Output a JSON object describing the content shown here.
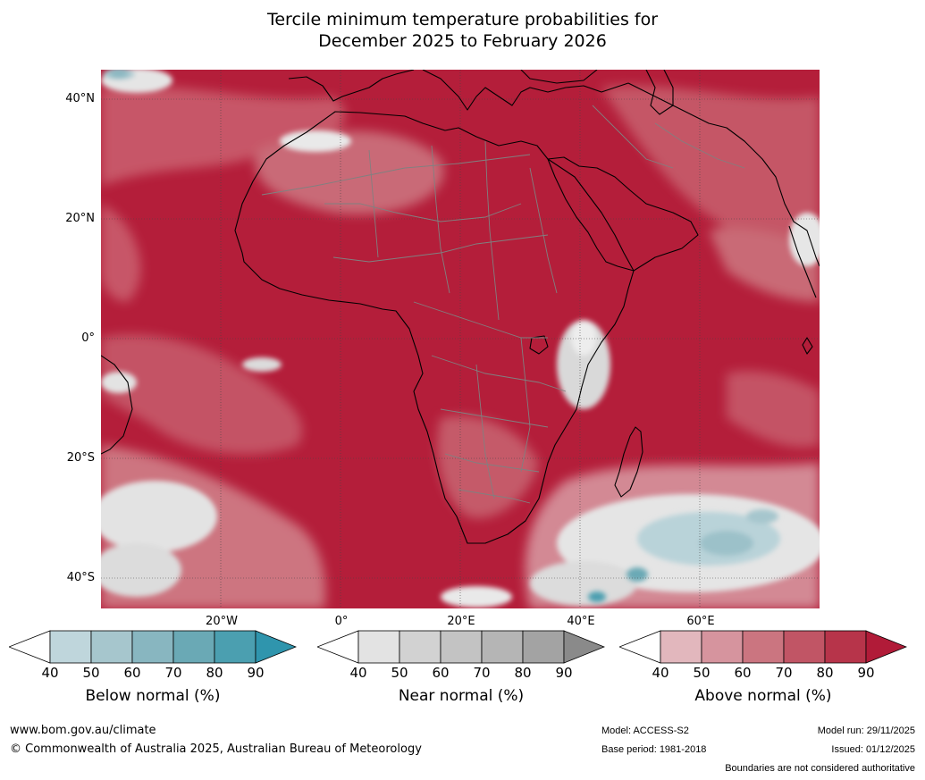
{
  "title": {
    "line1": "Tercile minimum temperature probabilities for",
    "line2": "December 2025 to February 2026"
  },
  "map": {
    "lat_labels": [
      "40°N",
      "20°N",
      "0°",
      "20°S",
      "40°S"
    ],
    "lon_labels": [
      "20°W",
      "0°",
      "20°E",
      "40°E",
      "60°E"
    ],
    "colors": {
      "above_fill": "#b41e3a",
      "land_outline": "#000000",
      "borders": "#808080",
      "grid": "#444444"
    }
  },
  "legends": {
    "below": {
      "title": "Below normal (%)",
      "ticks": [
        "40",
        "50",
        "60",
        "70",
        "80",
        "90"
      ],
      "colors": [
        "#ffffff",
        "#bfd6dc",
        "#a6c6cd",
        "#88b6c0",
        "#6aa9b5",
        "#4b9fb0",
        "#2f95ad"
      ]
    },
    "near": {
      "title": "Near normal (%)",
      "ticks": [
        "40",
        "50",
        "60",
        "70",
        "80",
        "90"
      ],
      "colors": [
        "#ffffff",
        "#e3e3e3",
        "#d2d2d2",
        "#c3c3c3",
        "#b5b5b5",
        "#a3a3a3",
        "#8a8a8a"
      ]
    },
    "above": {
      "title": "Above normal (%)",
      "ticks": [
        "40",
        "50",
        "60",
        "70",
        "80",
        "90"
      ],
      "colors": [
        "#ffffff",
        "#e2b7bd",
        "#d6949e",
        "#cb7580",
        "#c15565",
        "#b7344a",
        "#b11b38"
      ]
    }
  },
  "footer": {
    "website": "www.bom.gov.au/climate",
    "copyright": "© Commonwealth of Australia 2025, Australian Bureau of Meteorology",
    "model": "Model: ACCESS-S2",
    "base_period": "Base period: 1981-2018",
    "model_run": "Model run: 29/11/2025",
    "issued": "Issued: 01/12/2025",
    "disclaimer": "Boundaries are not considered authoritative"
  }
}
